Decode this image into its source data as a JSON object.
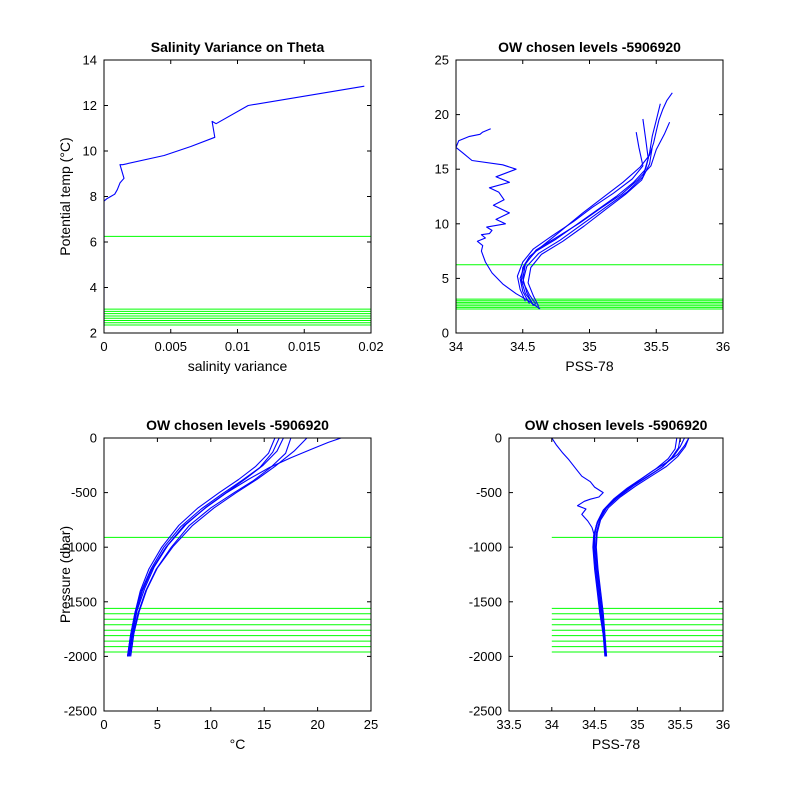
{
  "figure": {
    "background": "#ffffff"
  },
  "colors": {
    "profile": "#0000ff",
    "level": "#00ff00",
    "axis": "#000000"
  },
  "chart_data": [
    {
      "id": "panel1",
      "type": "line",
      "title": "Salinity Variance on Theta",
      "xlabel": "salinity variance",
      "ylabel": "Potential temp (°C)",
      "xlim": [
        0,
        0.02
      ],
      "ylim": [
        2,
        14
      ],
      "xticks": [
        0,
        0.005,
        0.01,
        0.015,
        0.02
      ],
      "yticks": [
        2,
        4,
        6,
        8,
        10,
        12,
        14
      ],
      "series": [
        {
          "x": [
            0,
            0,
            0,
            0.0002,
            0.0005,
            0.0008,
            0.001,
            0.0012,
            0.0015,
            0.0012,
            0.0014,
            0.0045,
            0.0065,
            0.0083,
            0.0081,
            0.0084,
            0.0108,
            0.0195
          ],
          "y": [
            2.3,
            4,
            7.8,
            7.9,
            8.0,
            8.1,
            8.3,
            8.6,
            8.8,
            9.4,
            9.4,
            9.8,
            10.2,
            10.6,
            11.3,
            11.2,
            12.0,
            12.85
          ]
        }
      ],
      "hlines": [
        6.25,
        2.35,
        2.45,
        2.55,
        2.65,
        2.75,
        2.85,
        2.95,
        3.05
      ]
    },
    {
      "id": "panel2",
      "type": "line",
      "title": "OW chosen levels -5906920",
      "xlabel": "PSS-78",
      "ylabel": "",
      "xlim": [
        34,
        36
      ],
      "ylim": [
        0,
        25
      ],
      "xticks": [
        34,
        34.5,
        35,
        35.5,
        36
      ],
      "yticks": [
        0,
        5,
        10,
        15,
        20,
        25
      ],
      "series": [
        {
          "x": [
            34.57,
            34.52,
            34.49,
            34.5,
            34.55,
            34.65,
            34.8,
            34.95,
            35.1,
            35.25,
            35.38,
            35.45,
            35.48,
            35.5,
            35.52,
            35.55,
            35.58,
            35.62
          ],
          "y": [
            2.8,
            3.6,
            4.8,
            6.0,
            7.0,
            8.0,
            9.5,
            11.0,
            12.4,
            13.8,
            15.2,
            16.3,
            17.4,
            18.5,
            19.5,
            20.5,
            21.3,
            22.0
          ]
        },
        {
          "x": [
            34.55,
            34.5,
            34.48,
            34.52,
            34.6,
            34.75,
            34.9,
            35.05,
            35.2,
            35.33,
            35.42,
            35.45,
            35.47,
            35.5,
            35.53
          ],
          "y": [
            2.7,
            3.8,
            5.0,
            6.4,
            7.5,
            8.6,
            9.9,
            11.2,
            12.5,
            13.8,
            15.0,
            16.5,
            18.0,
            19.5,
            21.0
          ]
        },
        {
          "x": [
            34.6,
            34.55,
            34.5,
            34.53,
            34.62,
            34.78,
            34.95,
            35.12,
            35.28,
            35.4,
            35.44,
            35.42,
            35.4
          ],
          "y": [
            2.6,
            3.5,
            4.7,
            6.1,
            7.3,
            8.5,
            10.0,
            11.5,
            12.9,
            14.3,
            16.0,
            17.8,
            19.6
          ]
        },
        {
          "x": [
            34.52,
            34.48,
            34.46,
            34.5,
            34.58,
            34.72,
            34.88,
            35.02,
            35.18,
            35.32,
            35.4,
            35.37,
            35.35
          ],
          "y": [
            2.9,
            4.0,
            5.2,
            6.5,
            7.7,
            8.9,
            10.2,
            11.5,
            12.8,
            14.1,
            15.3,
            17.0,
            18.4
          ]
        },
        {
          "x": [
            34.58,
            34.53,
            34.5,
            34.52,
            34.6,
            34.76,
            34.93,
            35.08,
            35.24,
            35.36,
            35.46,
            35.5,
            35.56,
            35.6
          ],
          "y": [
            2.5,
            3.7,
            5.0,
            6.3,
            7.6,
            8.8,
            10.1,
            11.4,
            12.7,
            14.0,
            15.3,
            16.8,
            18.2,
            19.3
          ]
        },
        {
          "x": [
            34.62,
            34.58,
            34.54,
            34.56,
            34.64,
            34.8,
            34.96,
            35.12,
            35.27,
            35.39,
            35.45,
            35.47
          ],
          "y": [
            2.4,
            3.4,
            4.6,
            6.0,
            7.2,
            8.4,
            9.8,
            11.3,
            12.7,
            14.0,
            15.5,
            17.0
          ]
        },
        {
          "x": [
            34.63,
            34.55,
            34.45,
            34.35,
            34.27,
            34.22,
            34.19,
            34.2,
            34.16,
            34.22,
            34.19,
            34.25,
            34.27,
            34.23,
            34.37,
            34.3,
            34.4,
            34.28,
            34.36,
            34.32,
            34.25,
            34.4,
            34.3,
            34.45,
            34.35,
            34.12,
            34.05,
            34.0,
            34.02,
            34.1,
            34.18,
            34.2,
            34.26
          ],
          "y": [
            2.2,
            2.9,
            3.6,
            4.5,
            5.5,
            6.5,
            7.5,
            8.0,
            8.4,
            8.7,
            9.0,
            9.1,
            9.4,
            9.7,
            10.0,
            10.4,
            11.0,
            11.7,
            12.2,
            12.9,
            13.3,
            13.8,
            14.3,
            15.0,
            15.4,
            15.8,
            16.5,
            17.0,
            17.6,
            18.0,
            18.2,
            18.4,
            18.7
          ]
        }
      ],
      "hlines": [
        6.25,
        2.2,
        2.35,
        2.5,
        2.65,
        2.8,
        2.95,
        3.1
      ]
    },
    {
      "id": "panel3",
      "type": "line",
      "title": "OW chosen levels -5906920",
      "xlabel": "°C",
      "ylabel": "Pressure (dbar)",
      "xlim": [
        0,
        25
      ],
      "ylim": [
        -2500,
        0
      ],
      "xticks": [
        0,
        5,
        10,
        15,
        20,
        25
      ],
      "yticks": [
        -2500,
        -2000,
        -1500,
        -1000,
        -500,
        0
      ],
      "series": [
        {
          "x": [
            2.3,
            2.6,
            3.0,
            3.6,
            4.5,
            5.8,
            7.5,
            9.5,
            11.5,
            13.5,
            15.5,
            17.5,
            19.5,
            21.0,
            22.2
          ],
          "y": [
            -2000,
            -1800,
            -1600,
            -1400,
            -1200,
            -1000,
            -800,
            -640,
            -500,
            -380,
            -270,
            -180,
            -100,
            -40,
            0
          ]
        },
        {
          "x": [
            2.2,
            2.5,
            2.9,
            3.4,
            4.2,
            5.4,
            7.0,
            8.8,
            10.8,
            12.6,
            14.2,
            15.4,
            16.0
          ],
          "y": [
            -2000,
            -1800,
            -1600,
            -1400,
            -1200,
            -1000,
            -800,
            -640,
            -500,
            -380,
            -260,
            -140,
            0
          ]
        },
        {
          "x": [
            2.4,
            2.7,
            3.2,
            3.9,
            4.9,
            6.3,
            8.0,
            10.0,
            12.2,
            14.0,
            15.6,
            17.0,
            17.5
          ],
          "y": [
            -2000,
            -1800,
            -1600,
            -1400,
            -1200,
            -1000,
            -800,
            -640,
            -500,
            -390,
            -270,
            -140,
            0
          ]
        },
        {
          "x": [
            2.3,
            2.7,
            3.1,
            3.8,
            4.7,
            6.0,
            7.7,
            9.6,
            11.6,
            13.3,
            14.9,
            16.2,
            16.8
          ],
          "y": [
            -2000,
            -1780,
            -1580,
            -1380,
            -1180,
            -980,
            -790,
            -630,
            -490,
            -370,
            -250,
            -120,
            0
          ]
        },
        {
          "x": [
            2.5,
            2.8,
            3.3,
            4.0,
            5.0,
            6.5,
            8.3,
            10.3,
            12.4,
            14.3,
            16.0,
            17.8,
            19.0
          ],
          "y": [
            -2000,
            -1790,
            -1590,
            -1390,
            -1190,
            -990,
            -800,
            -640,
            -500,
            -380,
            -260,
            -120,
            0
          ]
        },
        {
          "x": [
            2.2,
            2.5,
            2.9,
            3.5,
            4.4,
            5.6,
            7.2,
            9.1,
            11.1,
            12.9,
            14.6,
            15.8,
            16.4
          ],
          "y": [
            -2000,
            -1800,
            -1600,
            -1400,
            -1200,
            -1000,
            -810,
            -650,
            -510,
            -390,
            -270,
            -130,
            0
          ]
        }
      ],
      "hlines": [
        -910,
        -1560,
        -1610,
        -1660,
        -1710,
        -1760,
        -1810,
        -1860,
        -1910,
        -1960
      ]
    },
    {
      "id": "panel4",
      "type": "line",
      "title": "OW chosen levels -5906920",
      "xlabel": "PSS-78",
      "ylabel": "",
      "xlim": [
        33.5,
        36
      ],
      "ylim": [
        -2500,
        0
      ],
      "xticks": [
        33.5,
        34,
        34.5,
        35,
        35.5,
        36
      ],
      "yticks": [
        -2500,
        -2000,
        -1500,
        -1000,
        -500,
        0
      ],
      "series": [
        {
          "x": [
            34.63,
            34.61,
            34.58,
            34.55,
            34.52,
            34.5,
            34.5,
            34.52,
            34.58,
            34.68,
            34.82,
            35.0,
            35.18,
            35.35,
            35.47,
            35.55,
            35.6
          ],
          "y": [
            -2000,
            -1800,
            -1600,
            -1400,
            -1200,
            -1000,
            -900,
            -800,
            -700,
            -600,
            -500,
            -400,
            -300,
            -220,
            -150,
            -70,
            0
          ]
        },
        {
          "x": [
            34.63,
            34.6,
            34.57,
            34.54,
            34.51,
            34.49,
            34.5,
            34.54,
            34.62,
            34.75,
            34.92,
            35.1,
            35.28,
            35.4,
            35.48,
            35.5
          ],
          "y": [
            -2000,
            -1800,
            -1600,
            -1400,
            -1200,
            -1000,
            -880,
            -760,
            -650,
            -550,
            -450,
            -360,
            -270,
            -180,
            -90,
            0
          ]
        },
        {
          "x": [
            34.63,
            34.61,
            34.59,
            34.56,
            34.53,
            34.51,
            34.52,
            34.56,
            34.64,
            34.78,
            34.95,
            35.13,
            35.3,
            35.42,
            35.5,
            35.55
          ],
          "y": [
            -2000,
            -1800,
            -1600,
            -1400,
            -1200,
            -1000,
            -870,
            -750,
            -640,
            -540,
            -440,
            -350,
            -260,
            -170,
            -80,
            0
          ]
        },
        {
          "x": [
            34.62,
            34.6,
            34.56,
            34.53,
            34.5,
            34.48,
            34.49,
            34.53,
            34.6,
            34.72,
            34.88,
            35.05,
            35.22,
            35.36,
            35.44,
            35.46
          ],
          "y": [
            -2000,
            -1800,
            -1600,
            -1400,
            -1200,
            -1000,
            -890,
            -770,
            -660,
            -560,
            -460,
            -370,
            -280,
            -190,
            -100,
            0
          ]
        },
        {
          "x": [
            34.64,
            34.62,
            34.6,
            34.57,
            34.54,
            34.52,
            34.53,
            34.57,
            34.66,
            34.8,
            34.98,
            35.16,
            35.34,
            35.47,
            35.56,
            35.6
          ],
          "y": [
            -2000,
            -1800,
            -1600,
            -1400,
            -1200,
            -1000,
            -870,
            -750,
            -640,
            -540,
            -440,
            -350,
            -260,
            -170,
            -80,
            0
          ]
        },
        {
          "x": [
            34.5,
            34.47,
            34.42,
            34.35,
            34.4,
            34.3,
            34.38,
            34.45,
            34.55,
            34.6,
            34.5,
            34.45,
            34.35,
            34.3,
            34.25,
            34.2,
            34.12,
            34.05,
            34.0
          ],
          "y": [
            -900,
            -820,
            -760,
            -700,
            -650,
            -620,
            -580,
            -560,
            -540,
            -500,
            -450,
            -400,
            -350,
            -300,
            -250,
            -200,
            -130,
            -60,
            0
          ]
        }
      ],
      "hlines": [
        -910,
        -1560,
        -1610,
        -1660,
        -1710,
        -1760,
        -1810,
        -1860,
        -1910,
        -1960
      ],
      "hline_xrange": [
        34,
        36
      ]
    }
  ]
}
